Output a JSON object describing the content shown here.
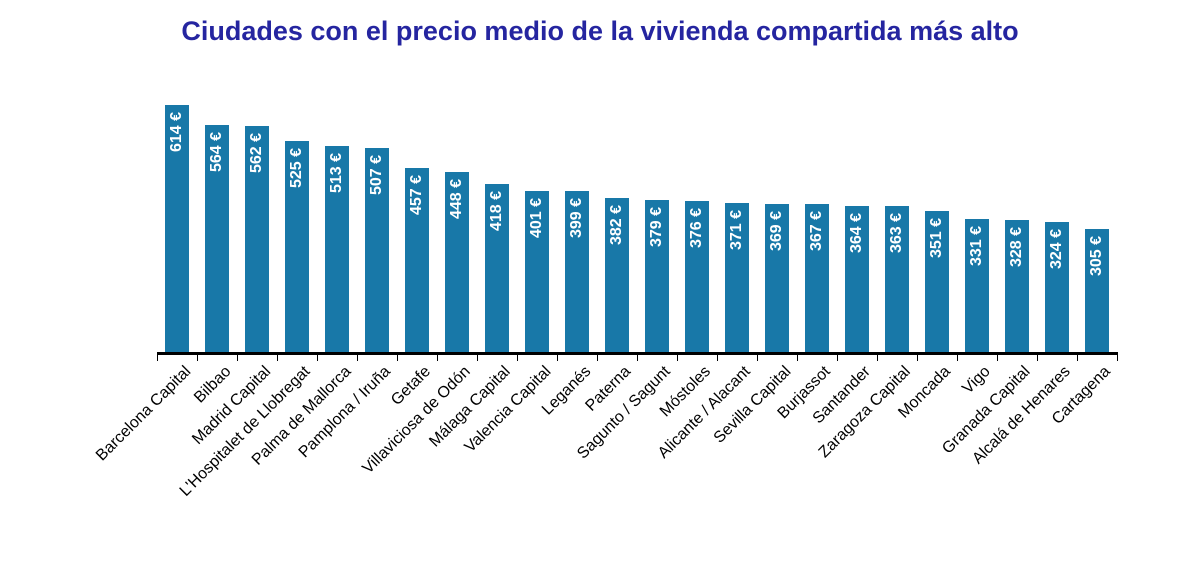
{
  "title": "Ciudades con el precio medio de la vivienda compartida más alto",
  "chart_data": {
    "type": "bar",
    "title": "Ciudades con el precio medio de la vivienda compartida más alto",
    "categories": [
      "Barcelona Capital",
      "Bilbao",
      "Madrid Capital",
      "L'Hospitalet de Llobregat",
      "Palma de Mallorca",
      "Pamplona / Iruña",
      "Getafe",
      "Villaviciosa de Odón",
      "Málaga Capital",
      "Valencia Capital",
      "Leganés",
      "Paterna",
      "Sagunto / Sagunt",
      "Móstoles",
      "Alicante / Alacant",
      "Sevilla Capital",
      "Burjassot",
      "Santander",
      "Zaragoza Capital",
      "Moncada",
      "Vigo",
      "Granada Capital",
      "Alcalá de Henares",
      "Cartagena"
    ],
    "values": [
      614,
      564,
      562,
      525,
      513,
      507,
      457,
      448,
      418,
      401,
      399,
      382,
      379,
      376,
      371,
      369,
      367,
      364,
      363,
      351,
      331,
      328,
      324,
      305
    ],
    "value_suffix": " €",
    "xlabel": "",
    "ylabel": "",
    "ylim": [
      0,
      614
    ],
    "grid": false,
    "legend": false,
    "bar_color": "#1878A8",
    "value_label_color": "#FFFFFF",
    "title_color": "#2525A0",
    "axis_color": "#000000"
  }
}
